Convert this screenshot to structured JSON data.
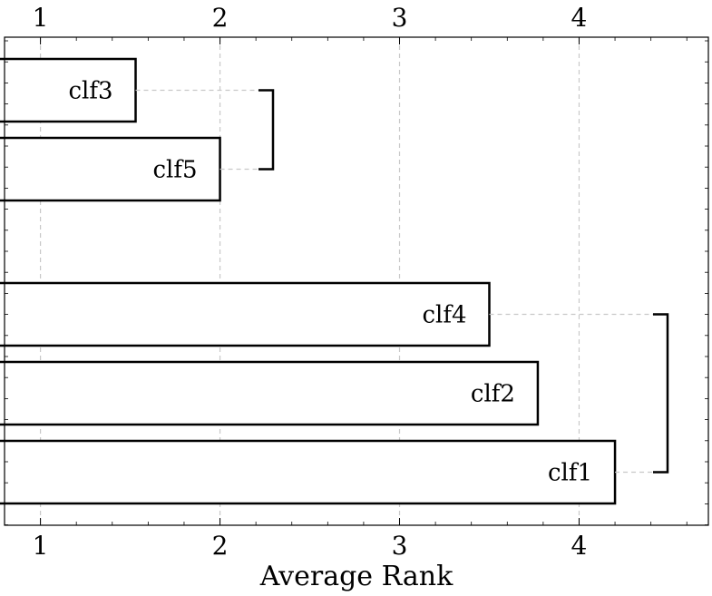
{
  "chart_data": {
    "type": "bar",
    "orientation": "horizontal",
    "xlabel": "Average Rank",
    "xlim": [
      0.8,
      4.72
    ],
    "xticks": [
      1,
      2,
      3,
      4
    ],
    "xtick_labels": [
      "1",
      "2",
      "3",
      "4"
    ],
    "grid": true,
    "bars": [
      {
        "label": "clf3",
        "value": 1.53,
        "group": 1
      },
      {
        "label": "clf5",
        "value": 2.0,
        "group": 1
      },
      {
        "label": "clf4",
        "value": 3.5,
        "group": 2
      },
      {
        "label": "clf2",
        "value": 3.77,
        "group": 2
      },
      {
        "label": "clf1",
        "value": 4.2,
        "group": 2
      }
    ],
    "cliques": [
      {
        "members": [
          "clf3",
          "clf5"
        ]
      },
      {
        "members": [
          "clf4",
          "clf2",
          "clf1"
        ]
      }
    ]
  }
}
